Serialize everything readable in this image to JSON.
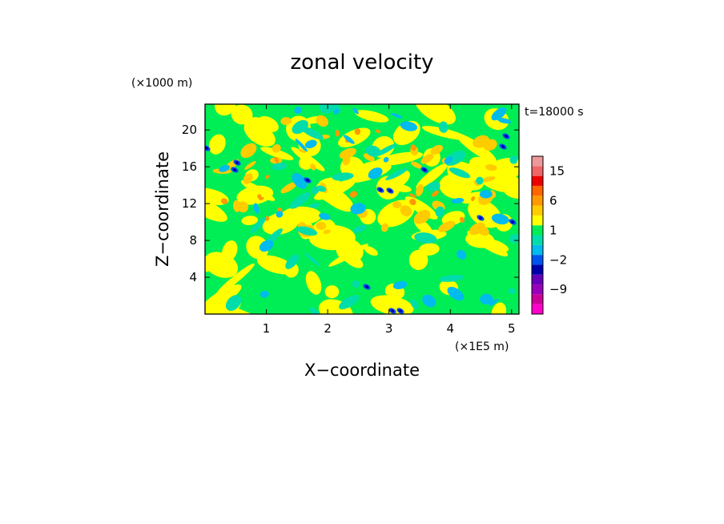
{
  "chart_data": {
    "type": "heatmap",
    "title": "zonal velocity",
    "xlabel": "X−coordinate",
    "ylabel": "Z−coordinate",
    "x_unit": "(×1E5 m)",
    "y_unit": "(×1000 m)",
    "time_label": "t=18000 s",
    "xlim": [
      0,
      5.12
    ],
    "ylim": [
      0,
      22.8
    ],
    "x_ticks": [
      1,
      2,
      3,
      4,
      5
    ],
    "y_ticks": [
      4,
      8,
      12,
      16,
      20
    ],
    "colorbar": {
      "levels": [
        -18,
        -15,
        -12,
        -9,
        -6,
        -3,
        -2,
        -1,
        0,
        1,
        2,
        3,
        6,
        9,
        12,
        15,
        18
      ],
      "colors": [
        "#ff00cc",
        "#cc0099",
        "#9900bb",
        "#6600bb",
        "#0000aa",
        "#0055ee",
        "#00bbee",
        "#00ddaa",
        "#00ee55",
        "#ffff00",
        "#ffcc00",
        "#ff9900",
        "#ff6600",
        "#ee0000",
        "#ee6666",
        "#ee9999"
      ],
      "tick_labels": [
        {
          "value": 15,
          "text": "15"
        },
        {
          "value": 6,
          "text": "6"
        },
        {
          "value": 1,
          "text": "1"
        },
        {
          "value": -2,
          "text": "−2"
        },
        {
          "value": -9,
          "text": "−9"
        }
      ]
    }
  }
}
